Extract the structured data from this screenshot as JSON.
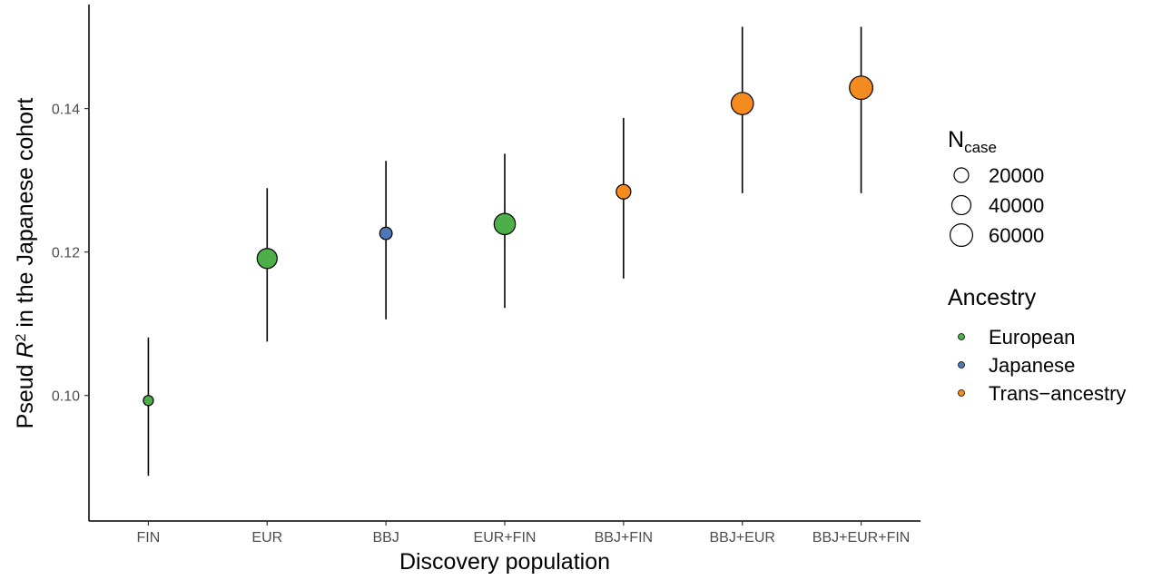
{
  "chart_data": {
    "type": "scatter",
    "title": "",
    "xlabel": "Discovery population",
    "ylabel_main": "Pseud ",
    "ylabel_italic": "R",
    "ylabel_sup": "2",
    "ylabel_rest": " in the Japanese cohort",
    "ylim": [
      0.0825,
      0.1545
    ],
    "yticks": [
      0.1,
      0.12,
      0.14
    ],
    "ytick_labels": [
      "0.10",
      "0.12",
      "0.14"
    ],
    "categories": [
      "FIN",
      "EUR",
      "BBJ",
      "EUR+FIN",
      "BBJ+FIN",
      "BBJ+EUR",
      "BBJ+EUR+FIN"
    ],
    "points": [
      {
        "category": "FIN",
        "y": 0.0993,
        "lower": 0.0888,
        "upper": 0.1081,
        "ancestry": "European",
        "n_case": 7000
      },
      {
        "category": "EUR",
        "y": 0.1191,
        "lower": 0.1075,
        "upper": 0.1289,
        "ancestry": "European",
        "n_case": 45000
      },
      {
        "category": "BBJ",
        "y": 0.1226,
        "lower": 0.1106,
        "upper": 0.1327,
        "ancestry": "Japanese",
        "n_case": 13000
      },
      {
        "category": "EUR+FIN",
        "y": 0.1239,
        "lower": 0.1122,
        "upper": 0.1337,
        "ancestry": "European",
        "n_case": 52000
      },
      {
        "category": "BBJ+FIN",
        "y": 0.1284,
        "lower": 0.1163,
        "upper": 0.1387,
        "ancestry": "Trans-ancestry",
        "n_case": 20000
      },
      {
        "category": "BBJ+EUR",
        "y": 0.1407,
        "lower": 0.1282,
        "upper": 0.1514,
        "ancestry": "Trans-ancestry",
        "n_case": 58000
      },
      {
        "category": "BBJ+EUR+FIN",
        "y": 0.1429,
        "lower": 0.1282,
        "upper": 0.1514,
        "ancestry": "Trans-ancestry",
        "n_case": 65000
      }
    ],
    "legend_size": {
      "title_main": "N",
      "title_sub": "case",
      "entries": [
        {
          "label": "20000",
          "value": 20000
        },
        {
          "label": "40000",
          "value": 40000
        },
        {
          "label": "60000",
          "value": 60000
        }
      ]
    },
    "legend_color": {
      "title": "Ancestry",
      "entries": [
        {
          "label": "European",
          "key": "European"
        },
        {
          "label": "Japanese",
          "key": "Japanese"
        },
        {
          "label": "Trans−ancestry",
          "key": "Trans-ancestry"
        }
      ]
    },
    "colors": {
      "European": "#4daf4a",
      "Japanese": "#4e79b8",
      "Trans-ancestry": "#f58a1f"
    },
    "grid": false,
    "legend_position": "right"
  }
}
